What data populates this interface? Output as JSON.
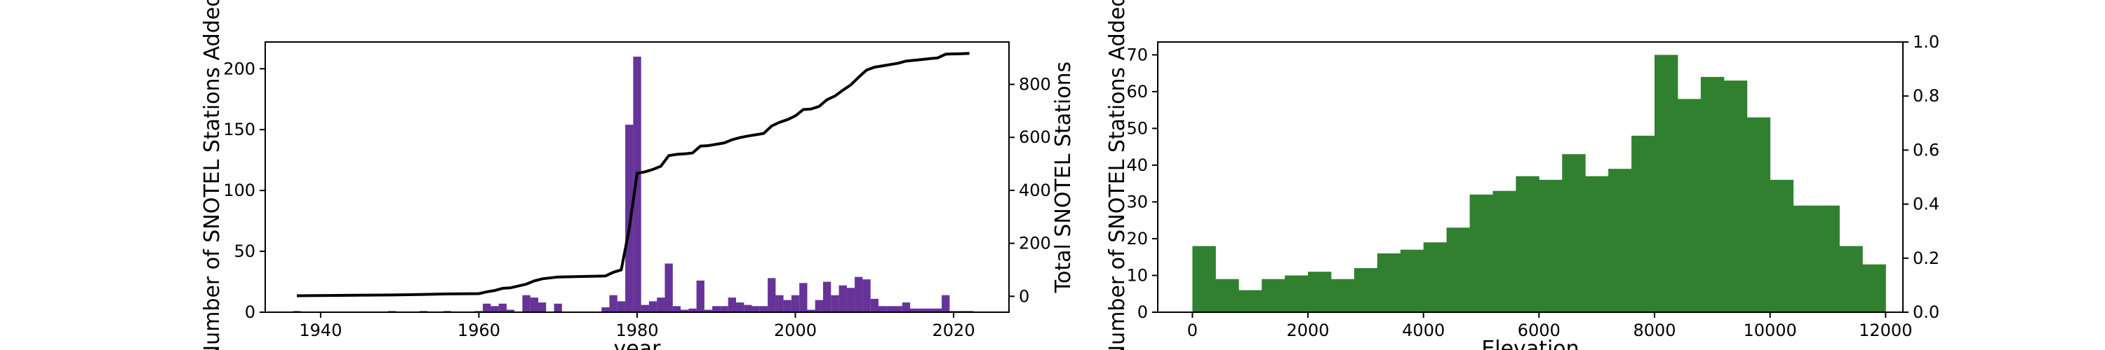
{
  "chart_data": [
    {
      "type": "bar",
      "xlabel": "year",
      "ylabel": "Number of SNOTEL Stations Added",
      "y2label": "Total SNOTEL Stations",
      "xlim": [
        1933,
        2027
      ],
      "ylim": [
        0,
        222
      ],
      "y2lim": [
        -60,
        960
      ],
      "xticks": [
        1940,
        1960,
        1980,
        2000,
        2020
      ],
      "yticks": [
        0,
        50,
        100,
        150,
        200
      ],
      "y2ticks": [
        0,
        200,
        400,
        600,
        800
      ],
      "bar_color": "#663399",
      "line_color": "#000000",
      "bars": {
        "x": [
          1937,
          1949,
          1953,
          1956,
          1960,
          1961,
          1962,
          1963,
          1964,
          1966,
          1967,
          1968,
          1970,
          1976,
          1977,
          1978,
          1979,
          1980,
          1981,
          1982,
          1983,
          1984,
          1985,
          1986,
          1987,
          1988,
          1989,
          1990,
          1991,
          1992,
          1993,
          1994,
          1995,
          1996,
          1997,
          1998,
          1999,
          2000,
          2001,
          2002,
          2003,
          2004,
          2005,
          2006,
          2007,
          2008,
          2009,
          2010,
          2011,
          2012,
          2013,
          2014,
          2015,
          2016,
          2017,
          2018,
          2019,
          2020,
          2021,
          2022
        ],
        "values": [
          1,
          1,
          1,
          1,
          1,
          7,
          5,
          7,
          2,
          14,
          12,
          8,
          7,
          4,
          14,
          9,
          154,
          210,
          6,
          9,
          12,
          40,
          5,
          2,
          3,
          26,
          2,
          5,
          5,
          12,
          8,
          6,
          5,
          5,
          28,
          14,
          10,
          14,
          24,
          2,
          10,
          25,
          14,
          22,
          20,
          29,
          27,
          11,
          5,
          5,
          5,
          8,
          3,
          3,
          3,
          3,
          14,
          1,
          1,
          1
        ]
      },
      "line": {
        "x": [
          1937,
          1949,
          1953,
          1956,
          1960,
          1961,
          1962,
          1963,
          1964,
          1966,
          1967,
          1968,
          1970,
          1976,
          1977,
          1978,
          1979,
          1980,
          1981,
          1982,
          1983,
          1984,
          1985,
          1986,
          1987,
          1988,
          1989,
          1990,
          1991,
          1992,
          1993,
          1994,
          1995,
          1996,
          1997,
          1998,
          1999,
          2000,
          2001,
          2002,
          2003,
          2004,
          2005,
          2006,
          2007,
          2008,
          2009,
          2010,
          2011,
          2012,
          2013,
          2014,
          2015,
          2016,
          2017,
          2018,
          2019,
          2020,
          2021,
          2022
        ],
        "values": [
          2,
          5,
          7,
          9,
          10,
          17,
          22,
          30,
          32,
          46,
          58,
          66,
          73,
          77,
          91,
          100,
          254,
          464,
          470,
          479,
          491,
          531,
          536,
          538,
          541,
          567,
          569,
          574,
          579,
          591,
          599,
          605,
          610,
          615,
          643,
          657,
          667,
          681,
          705,
          707,
          717,
          742,
          756,
          778,
          798,
          827,
          854,
          865,
          870,
          875,
          880,
          888,
          891,
          894,
          897,
          900,
          914,
          915,
          916,
          917
        ]
      }
    },
    {
      "type": "bar",
      "xlabel": "Elevation",
      "ylabel": "Number of SNOTEL Stations Added",
      "xlim": [
        -600,
        12300
      ],
      "ylim": [
        0,
        73.5
      ],
      "y2lim": [
        0,
        1.0
      ],
      "xticks": [
        0,
        2000,
        4000,
        6000,
        8000,
        10000,
        12000
      ],
      "yticks": [
        0,
        10,
        20,
        30,
        40,
        50,
        60,
        70
      ],
      "y2ticks": [
        "0.0",
        "0.2",
        "0.4",
        "0.6",
        "0.8",
        "1.0"
      ],
      "bar_color": "#31802f",
      "bin_width": 400,
      "bin_start": 0,
      "values": [
        18,
        9,
        6,
        9,
        10,
        11,
        9,
        12,
        16,
        17,
        19,
        23,
        32,
        33,
        37,
        36,
        43,
        37,
        39,
        48,
        70,
        58,
        64,
        63,
        53,
        36,
        29,
        29,
        18,
        13
      ]
    }
  ]
}
